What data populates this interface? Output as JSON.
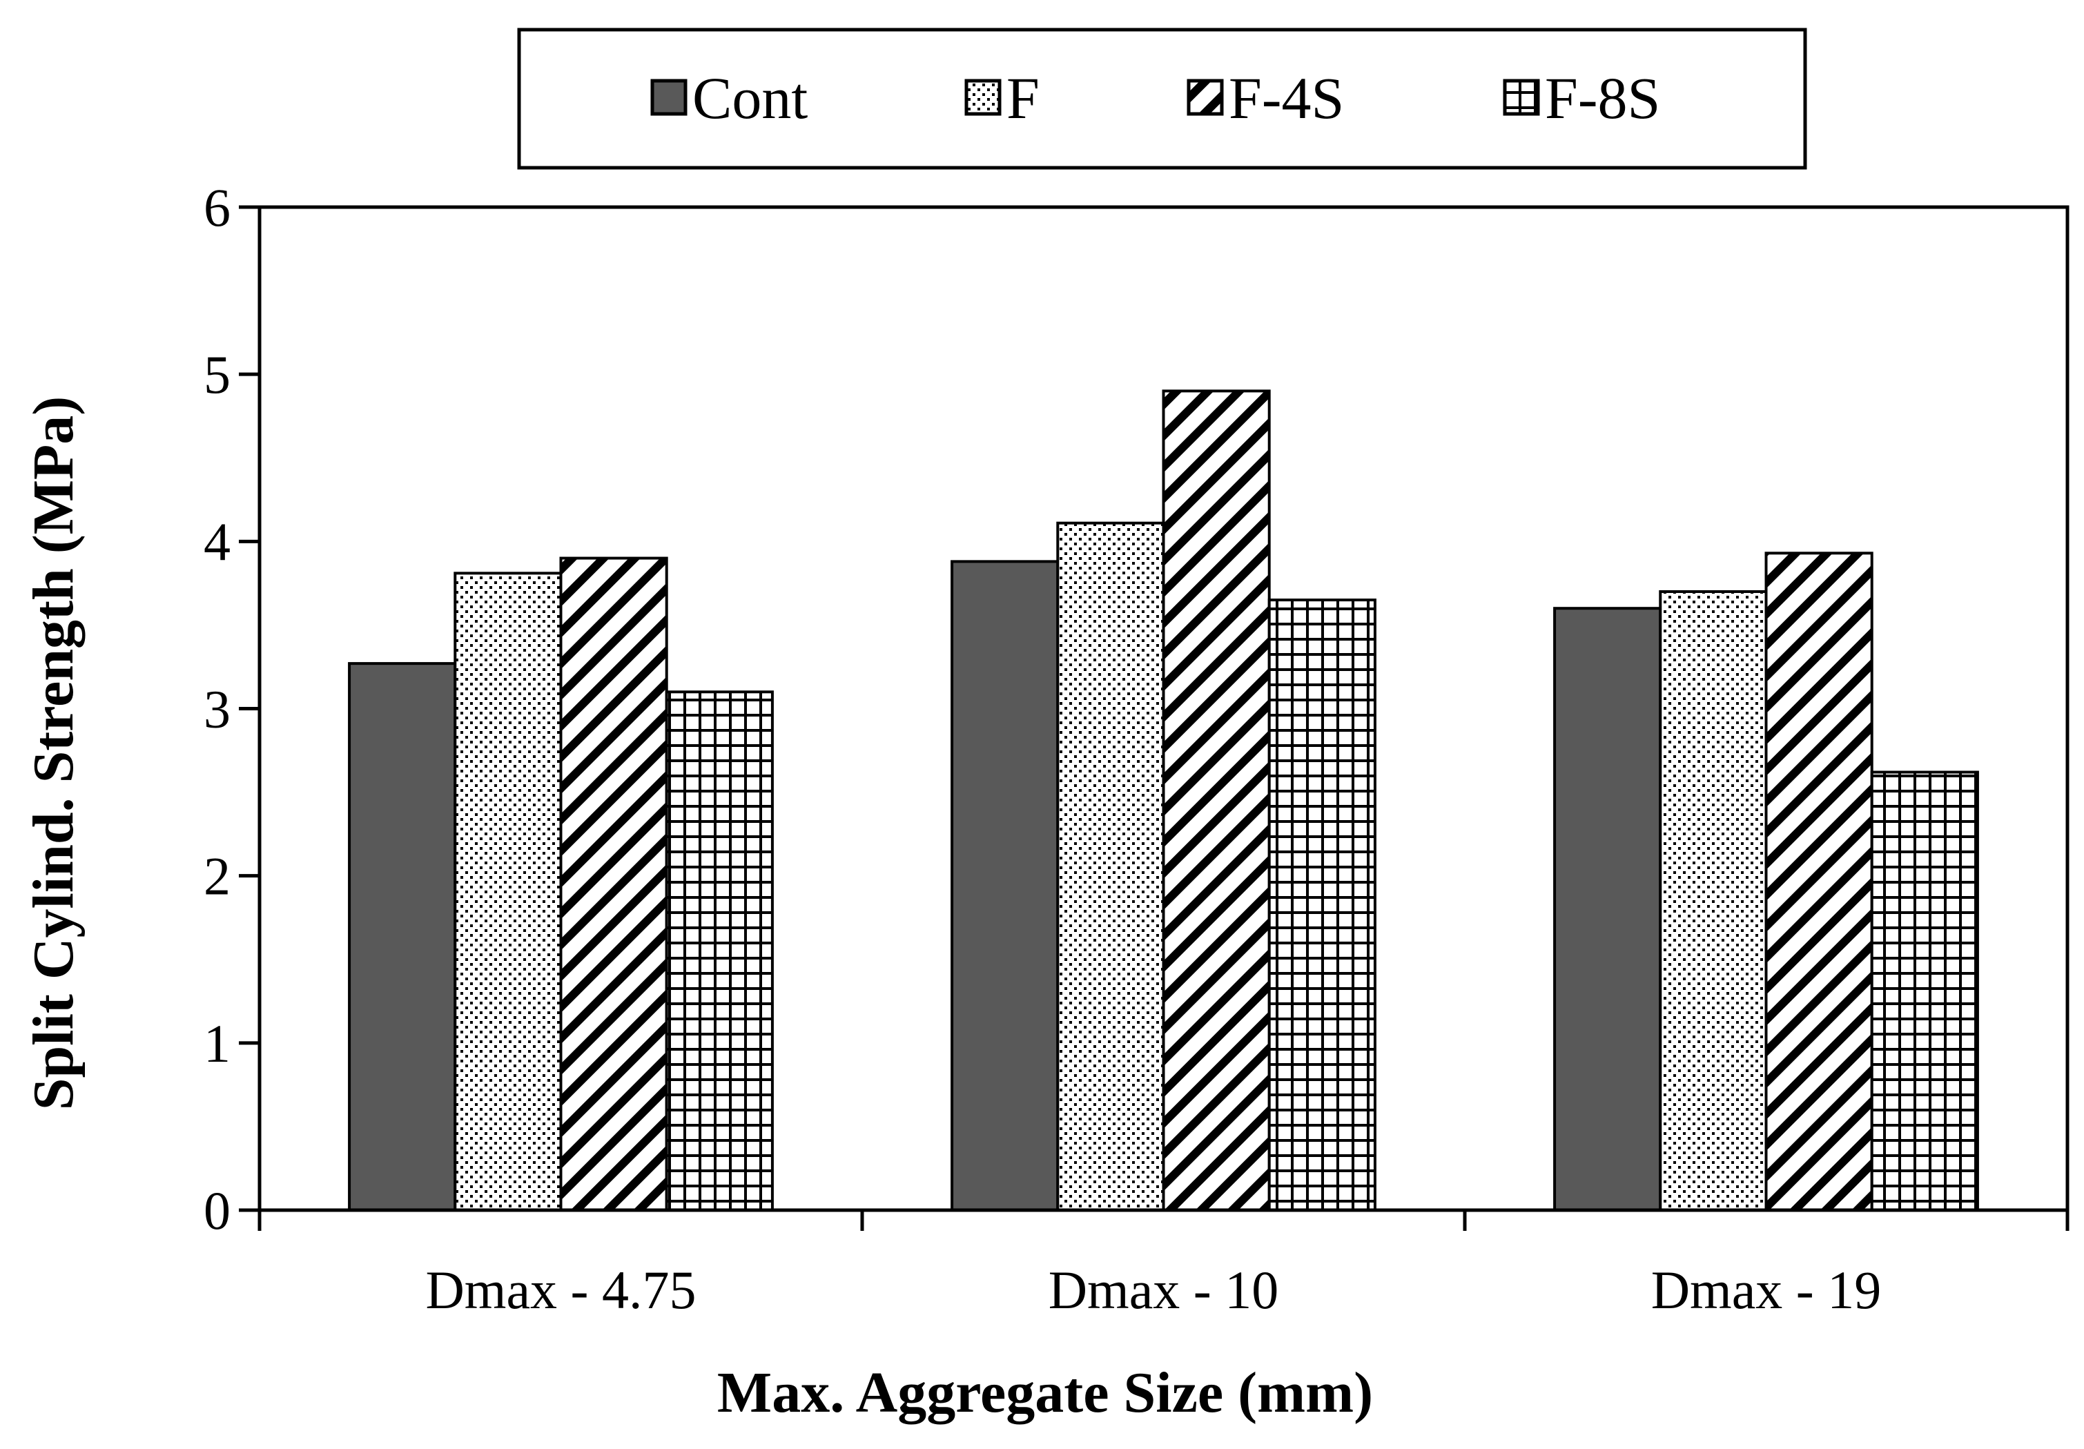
{
  "chart_data": {
    "type": "bar",
    "xlabel": "Max. Aggregate Size (mm)",
    "ylabel": "Split Cylind. Strength (MPa)",
    "ylim": [
      0,
      6
    ],
    "yticks": [
      0,
      1,
      2,
      3,
      4,
      5,
      6
    ],
    "categories": [
      "Dmax - 4.75",
      "Dmax - 10",
      "Dmax - 19"
    ],
    "legend_position": "top-center",
    "grid": false,
    "series": [
      {
        "name": "Cont",
        "pattern": "solid",
        "color": "#595959",
        "values": [
          3.27,
          3.88,
          3.6
        ]
      },
      {
        "name": "F",
        "pattern": "dots",
        "color": "#000000",
        "values": [
          3.81,
          4.11,
          3.7
        ]
      },
      {
        "name": "F-4S",
        "pattern": "diagonal",
        "color": "#000000",
        "values": [
          3.9,
          4.9,
          3.93
        ]
      },
      {
        "name": "F-8S",
        "pattern": "grid",
        "color": "#000000",
        "values": [
          3.1,
          3.65,
          2.62
        ]
      }
    ]
  }
}
